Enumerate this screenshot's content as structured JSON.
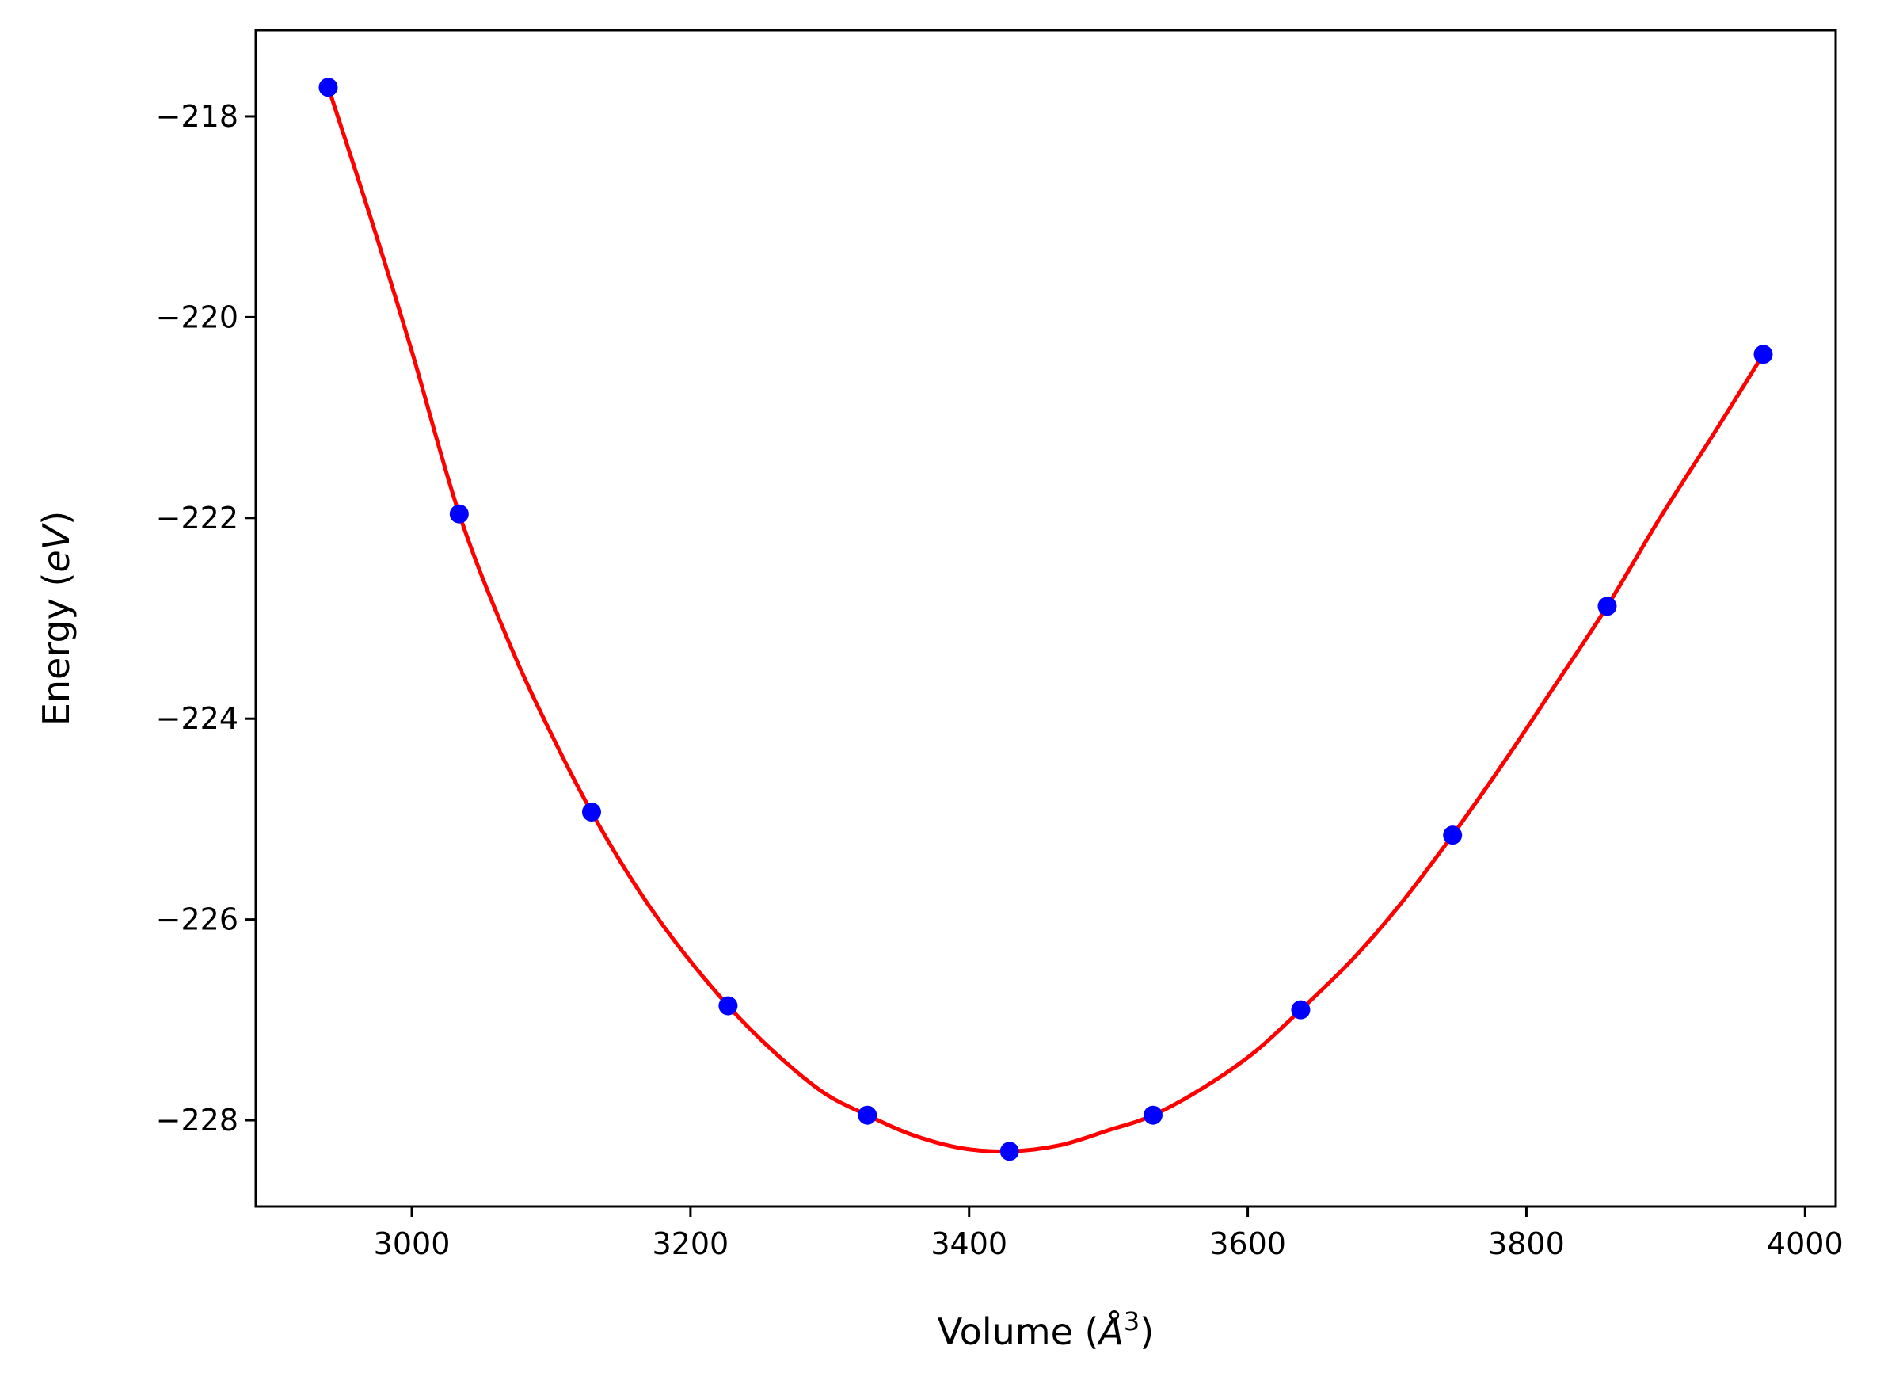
{
  "chart_data": {
    "type": "scatter",
    "title": "",
    "xlabel": "Volume (",
    "xlabel_unit": "Å",
    "xlabel_sup": "3",
    "xlabel_close": ")",
    "ylabel": "Energy (",
    "ylabel_unit": "eV",
    "ylabel_close": ")",
    "xlim": [
      2888,
      4022
    ],
    "ylim": [
      -228.86,
      -217.14
    ],
    "xticks": [
      3000,
      3200,
      3400,
      3600,
      3800,
      4000
    ],
    "xtick_labels": [
      "3000",
      "3200",
      "3400",
      "3600",
      "3800",
      "4000"
    ],
    "yticks": [
      -218,
      -220,
      -222,
      -224,
      -226,
      -228
    ],
    "ytick_labels": [
      "−218",
      "−220",
      "−222",
      "−224",
      "−226",
      "−228"
    ],
    "grid": false,
    "series": [
      {
        "kind": "points",
        "color": "#0000ff",
        "x": [
          2940,
          3034,
          3129,
          3227,
          3327,
          3429,
          3532,
          3638,
          3747,
          3858,
          3970
        ],
        "y": [
          -217.71,
          -221.96,
          -224.93,
          -226.86,
          -227.95,
          -228.31,
          -227.95,
          -226.9,
          -225.16,
          -222.88,
          -220.37
        ]
      },
      {
        "kind": "fit-curve",
        "color": "#ff0000",
        "x": [
          2940,
          2970,
          3000,
          3034,
          3070,
          3100,
          3129,
          3160,
          3190,
          3227,
          3260,
          3295,
          3327,
          3360,
          3395,
          3429,
          3465,
          3500,
          3532,
          3570,
          3605,
          3638,
          3675,
          3710,
          3747,
          3785,
          3820,
          3858,
          3895,
          3935,
          3970
        ],
        "y": [
          -217.71,
          -218.99,
          -220.34,
          -221.96,
          -223.25,
          -224.15,
          -224.93,
          -225.65,
          -226.24,
          -226.86,
          -227.32,
          -227.72,
          -227.95,
          -228.15,
          -228.28,
          -228.31,
          -228.25,
          -228.1,
          -227.95,
          -227.66,
          -227.32,
          -226.9,
          -226.4,
          -225.84,
          -225.16,
          -224.41,
          -223.68,
          -222.88,
          -222.02,
          -221.15,
          -220.37
        ]
      }
    ]
  }
}
